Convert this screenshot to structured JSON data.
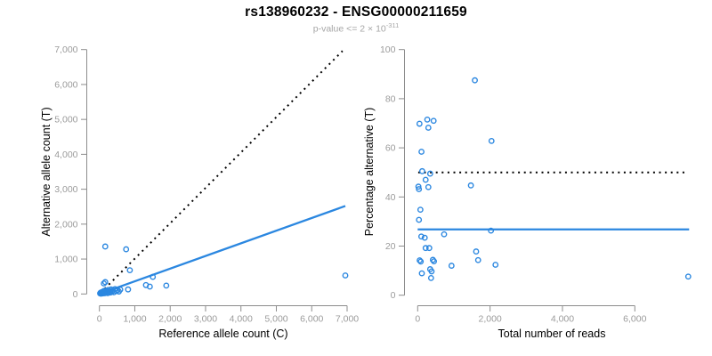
{
  "header": {
    "title": "rs138960232 - ENSG00000211659",
    "subtitle_prefix": "p-value <= 2 × 10",
    "subtitle_exponent": "-311"
  },
  "colors": {
    "accent_blue": "#2b87e0",
    "identity_black": "#000000",
    "axis_gray": "#8c8c8c",
    "tick_label_gray": "#9b9b9b",
    "axis_title_black": "#000000"
  },
  "chart_data": [
    {
      "type": "scatter",
      "name": "allele-count-scatter",
      "xlabel": "Reference allele count (C)",
      "ylabel": "Alternative allele count (T)",
      "xlim": [
        0,
        7000
      ],
      "ylim": [
        0,
        7000
      ],
      "grid": false,
      "legend": "none",
      "xticks": {
        "values": [
          0,
          1000,
          2000,
          3000,
          4000,
          5000,
          6000,
          7000
        ],
        "labels": [
          "0",
          "1,000",
          "2,000",
          "3,000",
          "4,000",
          "5,000",
          "6,000",
          "7,000"
        ]
      },
      "yticks": {
        "values": [
          0,
          1000,
          2000,
          3000,
          4000,
          5000,
          6000,
          7000
        ],
        "labels": [
          "0",
          "1,000",
          "2,000",
          "3,000",
          "4,000",
          "5,000",
          "6,000",
          "7,000"
        ]
      },
      "lines": [
        {
          "name": "identity-line",
          "style": "dotted",
          "color": "black",
          "x1": 30,
          "y1": 30,
          "x2": 6870,
          "y2": 6960
        },
        {
          "name": "fit-line",
          "style": "solid",
          "color": "blue",
          "x1": 0,
          "y1": 0,
          "x2": 6950,
          "y2": 2520
        }
      ],
      "points": [
        [
          20,
          15
        ],
        [
          35,
          40
        ],
        [
          45,
          8
        ],
        [
          60,
          25
        ],
        [
          70,
          55
        ],
        [
          85,
          15
        ],
        [
          95,
          35
        ],
        [
          105,
          70
        ],
        [
          115,
          25
        ],
        [
          125,
          50
        ],
        [
          135,
          90
        ],
        [
          150,
          20
        ],
        [
          160,
          60
        ],
        [
          175,
          35
        ],
        [
          190,
          100
        ],
        [
          205,
          50
        ],
        [
          220,
          75
        ],
        [
          235,
          25
        ],
        [
          250,
          115
        ],
        [
          270,
          60
        ],
        [
          290,
          90
        ],
        [
          310,
          40
        ],
        [
          330,
          130
        ],
        [
          355,
          70
        ],
        [
          380,
          100
        ],
        [
          410,
          50
        ],
        [
          440,
          140
        ],
        [
          475,
          85
        ],
        [
          510,
          115
        ],
        [
          550,
          70
        ],
        [
          590,
          125
        ],
        [
          125,
          300
        ],
        [
          165,
          340
        ],
        [
          165,
          1360
        ],
        [
          755,
          1280
        ],
        [
          860,
          680
        ],
        [
          810,
          130
        ],
        [
          1315,
          255
        ],
        [
          1425,
          212
        ],
        [
          1510,
          490
        ],
        [
          1890,
          240
        ],
        [
          6950,
          530
        ]
      ]
    },
    {
      "type": "scatter",
      "name": "percentage-alternative-scatter",
      "xlabel": "Total number of reads",
      "ylabel": "Percentage alternative (T)",
      "xlim": [
        0,
        7900
      ],
      "ylim": [
        0,
        100
      ],
      "grid": false,
      "legend": "none",
      "xticks": {
        "values": [
          0,
          2000,
          4000,
          6000
        ],
        "labels": [
          "0",
          "2,000",
          "4,000",
          "6,000"
        ]
      },
      "yticks": {
        "values": [
          0,
          20,
          40,
          60,
          80,
          100
        ],
        "labels": [
          "0",
          "20",
          "40",
          "60",
          "80",
          "100"
        ]
      },
      "lines": [
        {
          "name": "fifty-percent-line",
          "style": "dotted",
          "color": "black",
          "x1": 15,
          "y1": 50,
          "x2": 7390,
          "y2": 50
        },
        {
          "name": "mean-percentage-line",
          "style": "solid",
          "color": "blue",
          "x1": 0,
          "y1": 26.8,
          "x2": 7500,
          "y2": 26.8
        }
      ],
      "points": [
        [
          1580,
          87.5
        ],
        [
          50,
          69.8
        ],
        [
          265,
          71.5
        ],
        [
          440,
          71
        ],
        [
          295,
          68.2
        ],
        [
          2040,
          62.8
        ],
        [
          105,
          58.4
        ],
        [
          125,
          50.5
        ],
        [
          345,
          49.5
        ],
        [
          220,
          47
        ],
        [
          295,
          44
        ],
        [
          20,
          44.2
        ],
        [
          35,
          43.2
        ],
        [
          1470,
          44.7
        ],
        [
          75,
          34.8
        ],
        [
          35,
          30.7
        ],
        [
          2025,
          26.3
        ],
        [
          730,
          24.8
        ],
        [
          100,
          23.9
        ],
        [
          195,
          23.4
        ],
        [
          220,
          19.2
        ],
        [
          320,
          19.2
        ],
        [
          1615,
          17.8
        ],
        [
          55,
          14.2
        ],
        [
          85,
          13.7
        ],
        [
          420,
          14.4
        ],
        [
          450,
          13.8
        ],
        [
          1670,
          14.3
        ],
        [
          935,
          12
        ],
        [
          2150,
          12.4
        ],
        [
          115,
          8.9
        ],
        [
          345,
          10.6
        ],
        [
          385,
          9.7
        ],
        [
          370,
          7
        ],
        [
          7475,
          7.6
        ]
      ]
    }
  ]
}
